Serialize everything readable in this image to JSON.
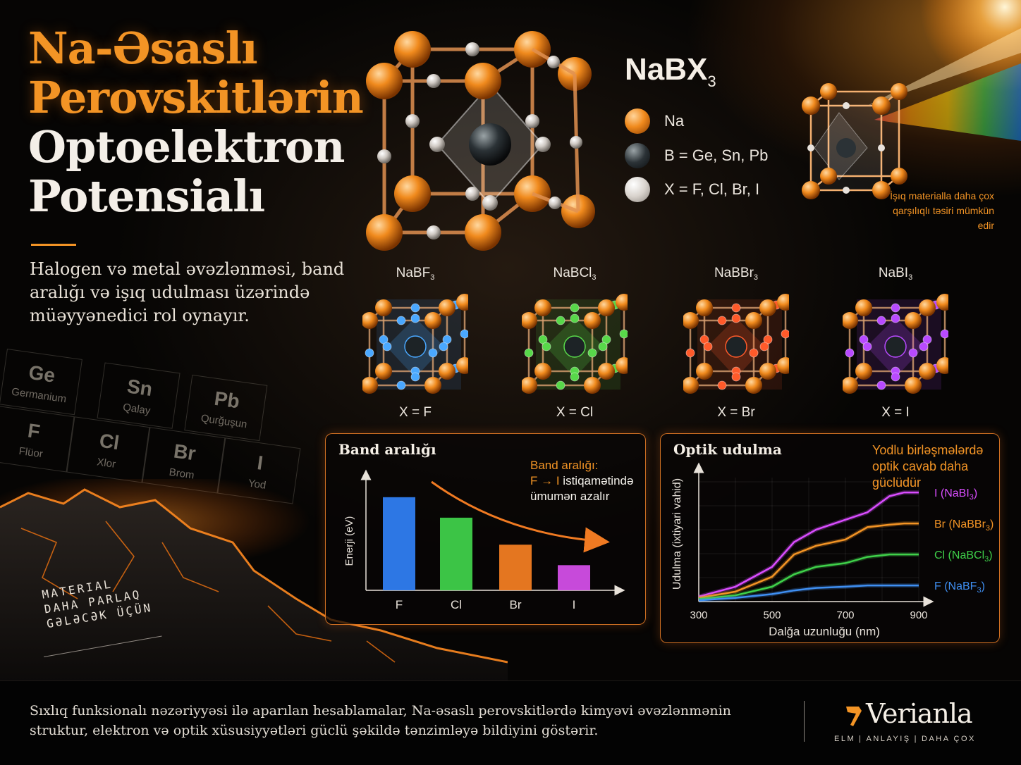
{
  "title": {
    "line1": "Na-Əsaslı",
    "line2": "Perovskitlərin",
    "line3": "Optoelektron",
    "line4": "Potensialı"
  },
  "subtitle": "Halogen və metal əvəzlənməsi, band aralığı və işıq udulması üzərində müəyyənedici rol oynayır.",
  "periodic_table": [
    {
      "symbol": "Ge",
      "name": "Germanium"
    },
    {
      "symbol": "Sn",
      "name": "Qalay"
    },
    {
      "symbol": "Pb",
      "name": "Qurğuşun"
    },
    {
      "symbol": "F",
      "name": "Flüor"
    },
    {
      "symbol": "Cl",
      "name": "Xlor"
    },
    {
      "symbol": "Br",
      "name": "Brom"
    },
    {
      "symbol": "I",
      "name": "Yod"
    }
  ],
  "motto": [
    "MATERIAL",
    "DAHA PARLAQ",
    "GƏLƏCƏK ÜÇÜN"
  ],
  "legend": {
    "formula_base": "NaBX",
    "formula_sub": "3",
    "items": [
      {
        "label": "Na",
        "icon": "na-atom-icon"
      },
      {
        "label": "B = Ge, Sn, Pb",
        "icon": "b-atom-icon"
      },
      {
        "label": "X = F, Cl, Br, I",
        "icon": "x-atom-icon"
      }
    ]
  },
  "light_note": "İşıq materialla daha çox qarşılıqlı təsiri mümkün edir",
  "variants": [
    {
      "formula_base": "NaBF",
      "formula_sub": "3",
      "x_label": "X = F",
      "color": "#4aa8ff"
    },
    {
      "formula_base": "NaBCl",
      "formula_sub": "3",
      "x_label": "X = Cl",
      "color": "#58d84a"
    },
    {
      "formula_base": "NaBBr",
      "formula_sub": "3",
      "x_label": "X = Br",
      "color": "#ff5a2a"
    },
    {
      "formula_base": "NaBI",
      "formula_sub": "3",
      "x_label": "X = I",
      "color": "#b84aff"
    }
  ],
  "band_note": {
    "line1": "Band aralığı:",
    "arrow": "F → I",
    "line2": " istiqamətində",
    "line3": "ümumən azalır"
  },
  "optic_note": "Yodlu birləşmələrdə optik cavab daha güclüdür",
  "chart_data": [
    {
      "type": "bar",
      "title": "Band aralığı",
      "ylabel": "Enerji (eV)",
      "xlabel": "",
      "categories": [
        "F",
        "Cl",
        "Br",
        "I"
      ],
      "values": [
        1.0,
        0.78,
        0.49,
        0.27
      ],
      "colors": [
        "#2f7df0",
        "#3fcf4a",
        "#f07c22",
        "#d24ee6"
      ],
      "ylim": [
        0,
        1.15
      ],
      "grid": false
    },
    {
      "type": "line",
      "title": "Optik udulma",
      "xlabel": "Dalğa uzunluğu (nm)",
      "ylabel": "Udulma (ixtiyari vahid)",
      "x_ticks": [
        300,
        500,
        700,
        900
      ],
      "xlim": [
        300,
        900
      ],
      "ylim": [
        0,
        1
      ],
      "grid": true,
      "series": [
        {
          "name": "I (NaBI",
          "sub": "3",
          "color": "#d94dff",
          "x": [
            300,
            400,
            500,
            560,
            620,
            700,
            760,
            820,
            860,
            900
          ],
          "y": [
            0.04,
            0.12,
            0.28,
            0.48,
            0.58,
            0.66,
            0.72,
            0.85,
            0.88,
            0.88
          ]
        },
        {
          "name": "Br (NaBBr",
          "sub": "3",
          "color": "#f39425",
          "x": [
            300,
            400,
            500,
            560,
            620,
            700,
            760,
            820,
            860,
            900
          ],
          "y": [
            0.03,
            0.08,
            0.2,
            0.38,
            0.45,
            0.5,
            0.6,
            0.62,
            0.63,
            0.63
          ]
        },
        {
          "name": "Cl (NaBCl",
          "sub": "3",
          "color": "#3fd14a",
          "x": [
            300,
            400,
            500,
            560,
            620,
            700,
            760,
            820,
            860,
            900
          ],
          "y": [
            0.02,
            0.05,
            0.12,
            0.22,
            0.28,
            0.31,
            0.36,
            0.38,
            0.38,
            0.38
          ]
        },
        {
          "name": "F (NaBF",
          "sub": "3",
          "color": "#3f8ff2",
          "x": [
            300,
            400,
            500,
            560,
            620,
            700,
            760,
            820,
            860,
            900
          ],
          "y": [
            0.01,
            0.03,
            0.06,
            0.09,
            0.11,
            0.12,
            0.13,
            0.13,
            0.13,
            0.13
          ]
        }
      ]
    }
  ],
  "footer": {
    "text": "Sıxlıq funksionalı nəzəriyyəsi ilə aparılan hesablamalar, Na-əsaslı perovskitlərdə kimyəvi əvəzlənmənin struktur, elektron və optik xüsusiyyətləri güclü şəkildə tənzimləyə bildiyini göstərir.",
    "brand": "Verianla",
    "tagline": [
      "ELM",
      "ANLAYIŞ",
      "DAHA ÇOX"
    ],
    "accent": "#f39425"
  }
}
